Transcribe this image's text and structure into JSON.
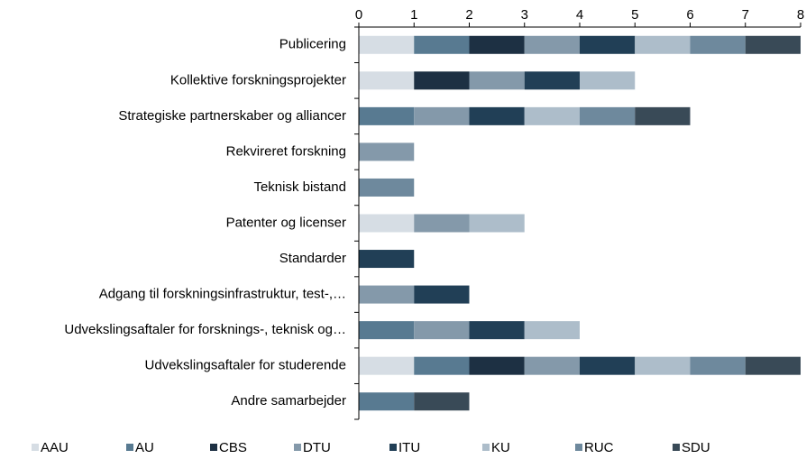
{
  "chart_data": {
    "type": "stacked_barh",
    "categories": [
      "Publicering",
      "Kollektive forskningsprojekter",
      "Strategiske partnerskaber og alliancer",
      "Rekvireret forskning",
      "Teknisk bistand",
      "Patenter og licenser",
      "Standarder",
      "Adgang til forskningsinfrastruktur, test-,…",
      "Udvekslingsaftaler for forsknings-, teknisk og…",
      "Udvekslingsaftaler for studerende",
      "Andre samarbejder"
    ],
    "series": [
      {
        "name": "AAU",
        "color": "#d6dde4",
        "values": [
          1,
          1,
          0,
          0,
          0,
          1,
          0,
          0,
          0,
          1,
          0
        ]
      },
      {
        "name": "AU",
        "color": "#587a91",
        "values": [
          1,
          0,
          1,
          0,
          0,
          0,
          0,
          0,
          1,
          1,
          1
        ]
      },
      {
        "name": "CBS",
        "color": "#1d3043",
        "values": [
          1,
          1,
          0,
          0,
          0,
          0,
          0,
          0,
          0,
          1,
          0
        ]
      },
      {
        "name": "DTU",
        "color": "#8499aa",
        "values": [
          1,
          1,
          1,
          1,
          0,
          1,
          0,
          1,
          1,
          1,
          0
        ]
      },
      {
        "name": "ITU",
        "color": "#213f56",
        "values": [
          1,
          1,
          1,
          0,
          0,
          0,
          1,
          1,
          1,
          1,
          0
        ]
      },
      {
        "name": "KU",
        "color": "#adbdca",
        "values": [
          1,
          1,
          1,
          0,
          0,
          1,
          0,
          0,
          1,
          1,
          0
        ]
      },
      {
        "name": "RUC",
        "color": "#6e899d",
        "values": [
          1,
          0,
          1,
          0,
          1,
          0,
          0,
          0,
          0,
          1,
          0
        ]
      },
      {
        "name": "SDU",
        "color": "#394a57",
        "values": [
          1,
          0,
          1,
          0,
          0,
          0,
          0,
          0,
          0,
          1,
          1
        ]
      }
    ],
    "xlim": [
      0,
      8
    ],
    "xticks": [
      0,
      1,
      2,
      3,
      4,
      5,
      6,
      7,
      8
    ]
  }
}
